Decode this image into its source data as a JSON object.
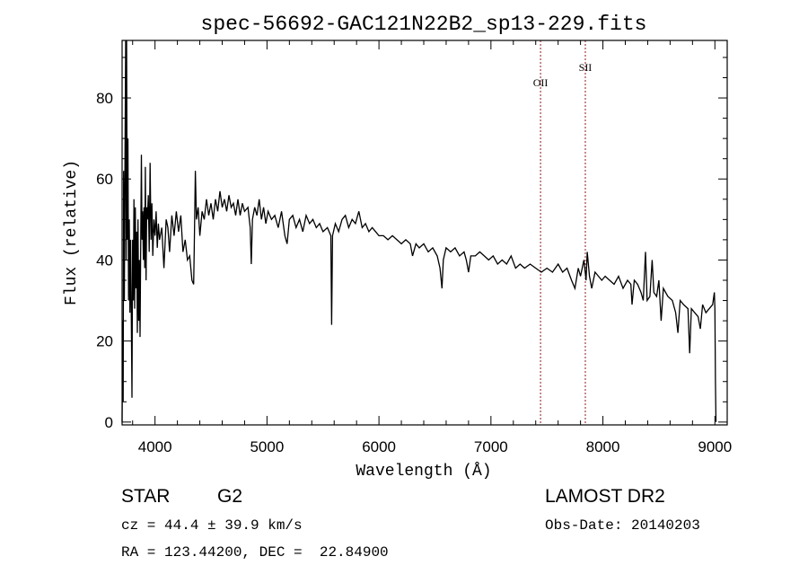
{
  "chart_data": {
    "type": "line",
    "title": "spec-56692-GAC121N22B2_sp13-229.fits",
    "xlabel": "Wavelength (Å)",
    "ylabel": "Flux (relative)",
    "xlim": [
      3706,
      9110
    ],
    "ylim": [
      -0.7,
      94.2
    ],
    "xticks": [
      4000,
      5000,
      6000,
      7000,
      8000,
      9000
    ],
    "xtick_labels": [
      "4000",
      "5000",
      "6000",
      "7000",
      "8000",
      "9000"
    ],
    "x_minor_step": 200,
    "yticks": [
      0,
      20,
      40,
      60,
      80
    ],
    "ytick_labels": [
      "0",
      "20",
      "40",
      "60",
      "80"
    ],
    "y_minor_step": 5,
    "grid": false,
    "line_color": "#000000",
    "marker_color": "#8b1a1a",
    "line_markers": [
      {
        "label": "OII",
        "x": 7443
      },
      {
        "label": "SII",
        "x": 7843
      }
    ],
    "series": [
      {
        "name": "spectrum",
        "x": [
          3706,
          3712,
          3716,
          3720,
          3726,
          3732,
          3738,
          3742,
          3746,
          3752,
          3758,
          3764,
          3770,
          3776,
          3782,
          3788,
          3794,
          3800,
          3806,
          3812,
          3818,
          3824,
          3830,
          3836,
          3842,
          3848,
          3854,
          3860,
          3866,
          3872,
          3878,
          3884,
          3890,
          3896,
          3902,
          3908,
          3914,
          3920,
          3926,
          3932,
          3940,
          3948,
          3956,
          3964,
          3972,
          3980,
          3990,
          4000,
          4010,
          4020,
          4030,
          4040,
          4060,
          4080,
          4100,
          4115,
          4130,
          4150,
          4170,
          4190,
          4210,
          4230,
          4250,
          4270,
          4290,
          4310,
          4330,
          4345,
          4350,
          4360,
          4370,
          4385,
          4400,
          4420,
          4440,
          4460,
          4480,
          4500,
          4520,
          4540,
          4560,
          4580,
          4600,
          4620,
          4640,
          4660,
          4680,
          4700,
          4720,
          4740,
          4760,
          4780,
          4800,
          4830,
          4850,
          4860,
          4870,
          4890,
          4910,
          4930,
          4950,
          4970,
          4990,
          5010,
          5040,
          5070,
          5100,
          5130,
          5160,
          5180,
          5200,
          5230,
          5260,
          5290,
          5320,
          5350,
          5380,
          5410,
          5440,
          5470,
          5500,
          5540,
          5570,
          5577,
          5585,
          5610,
          5640,
          5670,
          5700,
          5730,
          5760,
          5790,
          5820,
          5850,
          5880,
          5910,
          5940,
          5970,
          6000,
          6040,
          6080,
          6120,
          6160,
          6200,
          6240,
          6280,
          6300,
          6330,
          6360,
          6400,
          6440,
          6480,
          6520,
          6545,
          6563,
          6575,
          6600,
          6640,
          6680,
          6720,
          6760,
          6780,
          6800,
          6820,
          6860,
          6900,
          6940,
          6980,
          7020,
          7060,
          7100,
          7140,
          7180,
          7220,
          7260,
          7300,
          7350,
          7400,
          7450,
          7500,
          7550,
          7600,
          7640,
          7680,
          7720,
          7750,
          7780,
          7800,
          7830,
          7850,
          7860,
          7880,
          7900,
          7930,
          7960,
          7990,
          8020,
          8060,
          8100,
          8140,
          8180,
          8220,
          8250,
          8260,
          8280,
          8310,
          8340,
          8360,
          8380,
          8395,
          8420,
          8440,
          8455,
          8480,
          8500,
          8520,
          8540,
          8580,
          8620,
          8650,
          8670,
          8690,
          8720,
          8760,
          8775,
          8790,
          8820,
          8850,
          8870,
          8890,
          8920,
          8950,
          8980,
          8995,
          9000,
          9005,
          9010
        ],
        "y": [
          0,
          25,
          5,
          62,
          30,
          64,
          95,
          40,
          95,
          45,
          70,
          30,
          50,
          27,
          45,
          28,
          6,
          45,
          30,
          55,
          28,
          53,
          33,
          47,
          22,
          50,
          25,
          40,
          21,
          43,
          66,
          45,
          52,
          40,
          53,
          38,
          63,
          35,
          53,
          50,
          56,
          42,
          64,
          45,
          54,
          41,
          50,
          46,
          52,
          43,
          49,
          45,
          48,
          38,
          50,
          48,
          42,
          51,
          46,
          52,
          47,
          51,
          42,
          45,
          40,
          41,
          35,
          34,
          42,
          62,
          50,
          53,
          46,
          52,
          50,
          55,
          51,
          54,
          50,
          55,
          52,
          57,
          53,
          55,
          52,
          56,
          53,
          54,
          51,
          55,
          51,
          54,
          52,
          53,
          48,
          39,
          50,
          53,
          51,
          55,
          50,
          53,
          49,
          52,
          50,
          51,
          48,
          52,
          46,
          44,
          50,
          51,
          48,
          50,
          47,
          51,
          49,
          50,
          48,
          49,
          47,
          48,
          46,
          24,
          46,
          49,
          47,
          50,
          51,
          48,
          50,
          49,
          52,
          48,
          49,
          47,
          48,
          47,
          46,
          46,
          45,
          46,
          45,
          44,
          45,
          44,
          41,
          44,
          43,
          44,
          42,
          43,
          41,
          38,
          33,
          40,
          43,
          42,
          43,
          41,
          42,
          40,
          37,
          41,
          41,
          42,
          41,
          40,
          41,
          39,
          40,
          39,
          41,
          38,
          39,
          38,
          39,
          38,
          37,
          38,
          37,
          39,
          37,
          38,
          35,
          33,
          38,
          36,
          40,
          35,
          42,
          36,
          33,
          37,
          36,
          35,
          36,
          35,
          34,
          36,
          33,
          35,
          34,
          29,
          35,
          34,
          32,
          30,
          42,
          30,
          31,
          40,
          32,
          31,
          35,
          25,
          33,
          31,
          30,
          27,
          22,
          30,
          29,
          28,
          17,
          28,
          27,
          26,
          23,
          29,
          27,
          28,
          29,
          32,
          28,
          10,
          0
        ]
      }
    ]
  },
  "info": {
    "class_label": "STAR",
    "subclass": "G2",
    "cz": "cz = 44.4 ± 39.9 km/s",
    "coords": "RA = 123.44200, DEC =  22.84900",
    "survey": "LAMOST DR2",
    "obs_date": "Obs-Date: 20140203"
  }
}
